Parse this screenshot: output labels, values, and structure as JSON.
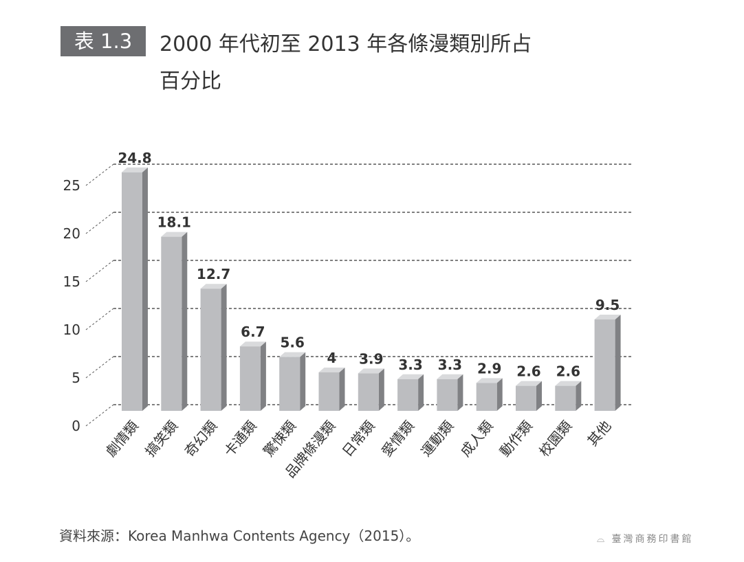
{
  "header": {
    "tag": "表 1.3",
    "title_line1": "2000 年代初至 2013 年各條漫類別所占",
    "title_line2": "百分比"
  },
  "chart_data": {
    "type": "bar",
    "title": "2000 年代初至 2013 年各條漫類別所占百分比",
    "xlabel": "",
    "ylabel": "",
    "ylim": [
      0,
      25
    ],
    "yticks": [
      0,
      5,
      10,
      15,
      20,
      25
    ],
    "grid": true,
    "categories": [
      "劇情類",
      "搞笑類",
      "奇幻類",
      "卡通類",
      "驚悚類",
      "品牌條漫類",
      "日常類",
      "愛情類",
      "運動類",
      "成人類",
      "動作類",
      "校園類",
      "其他"
    ],
    "values": [
      24.8,
      18.1,
      12.7,
      6.7,
      5.6,
      4,
      3.9,
      3.3,
      3.3,
      2.9,
      2.6,
      2.6,
      9.5
    ],
    "value_labels": [
      "24.8",
      "18.1",
      "12.7",
      "6.7",
      "5.6",
      "4",
      "3.9",
      "3.3",
      "3.3",
      "2.9",
      "2.6",
      "2.6",
      "9.5"
    ],
    "colors": {
      "front": "#bcbdc0",
      "side": "#808184",
      "top": "#d9dadc"
    }
  },
  "footer": {
    "source": "資料來源：Korea Manhwa Contents Agency（2015）。",
    "publisher_logo": "臺灣商務印書館"
  }
}
